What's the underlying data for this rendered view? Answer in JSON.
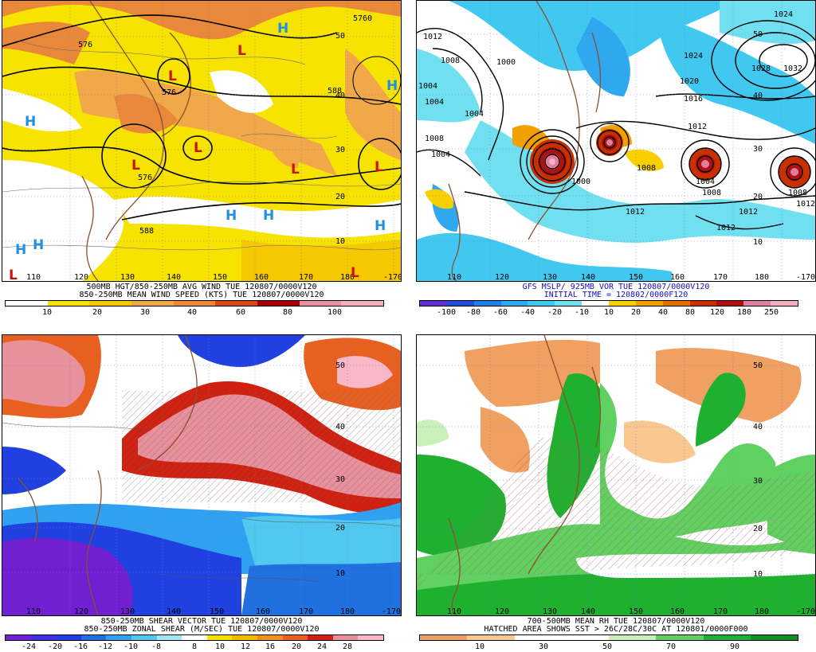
{
  "panels": [
    {
      "caption1": "500MB HGT/850-250MB AVG WIND TUE 120807/0000V120",
      "caption2": "850-250MB MEAN WIND SPEED (KTS) TUE 120807/0000V120",
      "lon_labels": [
        "110",
        "120",
        "130",
        "140",
        "150",
        "160",
        "170",
        "180",
        "-170"
      ],
      "lat_labels": [
        "50",
        "40",
        "30",
        "20",
        "10"
      ],
      "contour_labels": [
        "576",
        "576",
        "576",
        "5760",
        "588",
        "588",
        "576",
        "588",
        "576"
      ],
      "symbols": [
        {
          "t": "L",
          "c": "#cc1010"
        },
        {
          "t": "L",
          "c": "#cc1010"
        },
        {
          "t": "L",
          "c": "#cc1010"
        },
        {
          "t": "L",
          "c": "#cc1010"
        },
        {
          "t": "L",
          "c": "#cc1010"
        },
        {
          "t": "L",
          "c": "#cc1010"
        },
        {
          "t": "L",
          "c": "#cc1010"
        },
        {
          "t": "L",
          "c": "#cc1010"
        },
        {
          "t": "H",
          "c": "#2090e0"
        },
        {
          "t": "H",
          "c": "#2090e0"
        },
        {
          "t": "H",
          "c": "#2090e0"
        },
        {
          "t": "H",
          "c": "#2090e0"
        },
        {
          "t": "H",
          "c": "#2090e0"
        },
        {
          "t": "H",
          "c": "#2090e0"
        },
        {
          "t": "H",
          "c": "#2090e0"
        },
        {
          "t": "H",
          "c": "#2090e0"
        }
      ],
      "colorbar": {
        "colors": [
          "#ffffff",
          "#f6e400",
          "#f6c800",
          "#f0a848",
          "#e88838",
          "#d84818",
          "#a80000",
          "#e890a0",
          "#f8b0c0"
        ],
        "ticks": [
          "10",
          "20",
          "30",
          "40",
          "60",
          "80",
          "100"
        ]
      }
    },
    {
      "caption1": "GFS MSLP/ 925MB VOR TUE 120807/0000V120",
      "caption2": "INITIAL TIME = 120802/0000F120",
      "lon_labels": [
        "110",
        "120",
        "130",
        "140",
        "150",
        "160",
        "170",
        "180",
        "-170"
      ],
      "lat_labels": [
        "50",
        "40",
        "30",
        "20",
        "10"
      ],
      "contour_labels": [
        "1012",
        "1008",
        "1000",
        "1004",
        "1004",
        "1008",
        "1004",
        "1024",
        "1028",
        "1032",
        "1020",
        "1016",
        "1012",
        "1000",
        "1008",
        "1004",
        "1008",
        "1012",
        "1012",
        "1012",
        "1008",
        "1012",
        "1004",
        "1024"
      ],
      "colorbar": {
        "colors": [
          "#6030d0",
          "#2050d8",
          "#2080e8",
          "#30a8f0",
          "#40c8f0",
          "#70e0f0",
          "#ffffff",
          "#f8d000",
          "#f0a000",
          "#e07000",
          "#c83000",
          "#b01010",
          "#e080a0",
          "#f8b0c0"
        ],
        "ticks": [
          "-100",
          "-80",
          "-60",
          "-40",
          "-20",
          "-10",
          "10",
          "20",
          "40",
          "80",
          "120",
          "180",
          "250"
        ]
      }
    },
    {
      "caption1": "850-250MB SHEAR VECTOR TUE 120807/0000V120",
      "caption2": "850-250MB ZONAL SHEAR (M/SEC) TUE 120807/0000V120",
      "lon_labels": [
        "110",
        "120",
        "130",
        "140",
        "150",
        "160",
        "170",
        "180",
        "-170"
      ],
      "lat_labels": [
        "50",
        "40",
        "30",
        "20",
        "10"
      ],
      "colorbar": {
        "colors": [
          "#7020d0",
          "#4030e0",
          "#2040e0",
          "#2070e0",
          "#30a0f0",
          "#50c8f0",
          "#a0e8f8",
          "#ffffff",
          "#f8e000",
          "#f8b800",
          "#f09020",
          "#e86020",
          "#d02010",
          "#e8909c",
          "#f8b8c8"
        ],
        "ticks": [
          "-24",
          "-20",
          "-16",
          "-12",
          "-10",
          "-8",
          "8",
          "10",
          "12",
          "16",
          "20",
          "24",
          "28"
        ]
      }
    },
    {
      "caption1": "700-500MB MEAN RH TUE 120807/0000V120",
      "caption2": "HATCHED AREA SHOWS SST > 26C/28C/30C AT 120801/0000F000",
      "lon_labels": [
        "110",
        "120",
        "130",
        "140",
        "150",
        "160",
        "170",
        "180",
        "-170"
      ],
      "lat_labels": [
        "50",
        "40",
        "30",
        "20",
        "10"
      ],
      "colorbar": {
        "colors": [
          "#f0a060",
          "#f8c890",
          "#ffffff",
          "#ffffff",
          "#c8f0b8",
          "#60d060",
          "#20b030",
          "#109020"
        ],
        "ticks": [
          "10",
          "30",
          "50",
          "70",
          "90"
        ]
      }
    }
  ]
}
